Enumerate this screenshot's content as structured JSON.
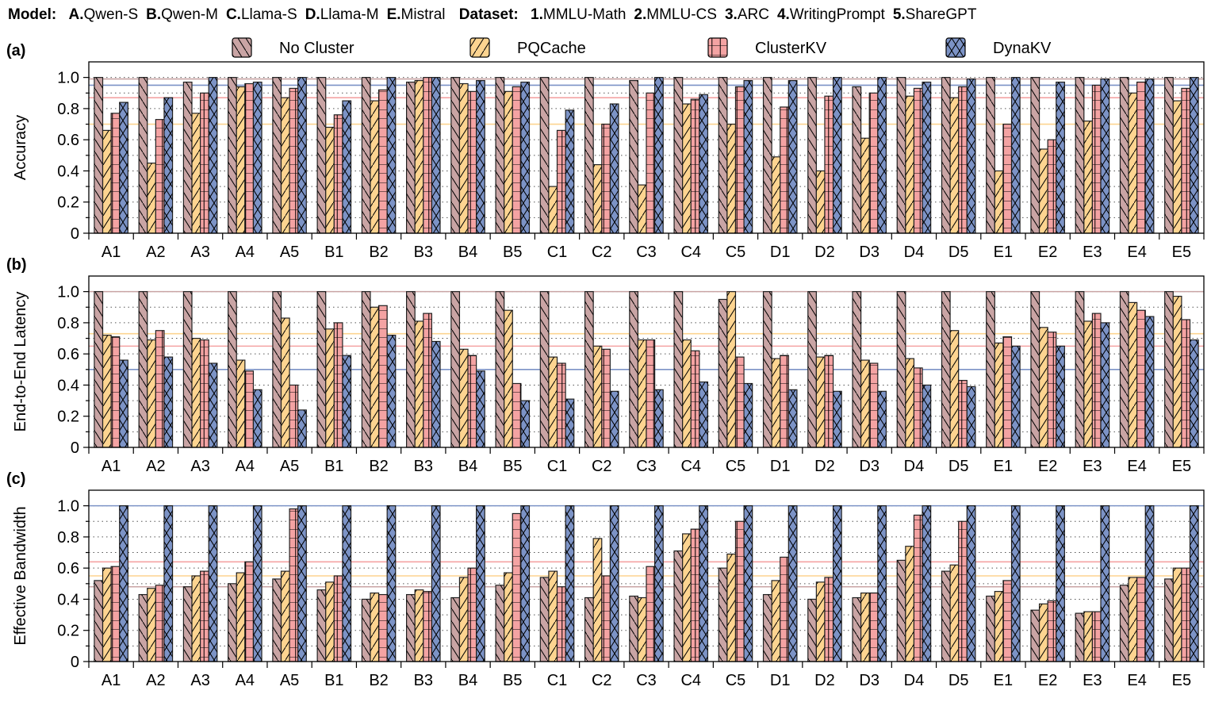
{
  "header": {
    "model_label": "Model:",
    "models": [
      {
        "key": "A.",
        "name": "Qwen-S"
      },
      {
        "key": "B.",
        "name": "Qwen-M"
      },
      {
        "key": "C.",
        "name": "Llama-S"
      },
      {
        "key": "D.",
        "name": "Llama-M"
      },
      {
        "key": "E.",
        "name": "Mistral"
      }
    ],
    "dataset_label": "Dataset:",
    "datasets": [
      {
        "key": "1.",
        "name": "MMLU-Math"
      },
      {
        "key": "2.",
        "name": "MMLU-CS"
      },
      {
        "key": "3.",
        "name": "ARC"
      },
      {
        "key": "4.",
        "name": "WritingPrompt"
      },
      {
        "key": "5.",
        "name": "ShareGPT"
      }
    ]
  },
  "legend": [
    {
      "name": "No Cluster",
      "color": "#c9a4a4",
      "hatch": "backslash"
    },
    {
      "name": "PQCache",
      "color": "#fdd490",
      "hatch": "slash"
    },
    {
      "name": "ClusterKV",
      "color": "#f4a3a3",
      "hatch": "brick"
    },
    {
      "name": "DynaKV",
      "color": "#7c93c6",
      "hatch": "cross"
    }
  ],
  "chart_data": [
    {
      "panel": "(a)",
      "type": "bar",
      "ylabel": "Accuracy",
      "ylim": [
        0,
        1.1
      ],
      "yticks": [
        "0",
        "0.2",
        "0.4",
        "0.6",
        "0.8",
        "1.0"
      ],
      "grid": "dotted-horizontal",
      "categories": [
        "A1",
        "A2",
        "A3",
        "A4",
        "A5",
        "B1",
        "B2",
        "B3",
        "B4",
        "B5",
        "C1",
        "C2",
        "C3",
        "C4",
        "C5",
        "D1",
        "D2",
        "D3",
        "D4",
        "D5",
        "E1",
        "E2",
        "E3",
        "E4",
        "E5"
      ],
      "series": [
        {
          "name": "No Cluster",
          "values": [
            1.0,
            1.0,
            0.97,
            1.0,
            1.0,
            1.0,
            1.0,
            0.97,
            1.0,
            1.0,
            1.0,
            1.0,
            0.98,
            1.0,
            1.0,
            1.0,
            1.0,
            0.94,
            1.0,
            1.0,
            1.0,
            1.0,
            1.0,
            1.0,
            1.0
          ]
        },
        {
          "name": "PQCache",
          "values": [
            0.66,
            0.45,
            0.77,
            0.94,
            0.87,
            0.68,
            0.85,
            0.98,
            0.96,
            0.91,
            0.3,
            0.44,
            0.31,
            0.83,
            0.7,
            0.49,
            0.4,
            0.61,
            0.88,
            0.87,
            0.4,
            0.54,
            0.72,
            0.9,
            0.85
          ]
        },
        {
          "name": "ClusterKV",
          "values": [
            0.77,
            0.73,
            0.9,
            0.96,
            0.93,
            0.76,
            0.92,
            1.0,
            0.91,
            0.94,
            0.66,
            0.7,
            0.9,
            0.86,
            0.94,
            0.81,
            0.88,
            0.9,
            0.93,
            0.94,
            0.7,
            0.6,
            0.95,
            0.97,
            0.93
          ]
        },
        {
          "name": "DynaKV",
          "values": [
            0.84,
            0.87,
            1.0,
            0.97,
            1.0,
            0.85,
            1.0,
            1.0,
            0.98,
            0.97,
            0.79,
            0.83,
            1.0,
            0.89,
            0.98,
            0.98,
            1.0,
            1.0,
            0.97,
            0.99,
            1.0,
            0.97,
            0.99,
            0.99,
            1.0
          ]
        }
      ],
      "reference_lines": [
        {
          "series": "No Cluster",
          "value": 0.99
        },
        {
          "series": "DynaKV",
          "value": 0.95
        },
        {
          "series": "ClusterKV",
          "value": 0.87
        },
        {
          "series": "PQCache",
          "value": 0.7
        }
      ]
    },
    {
      "panel": "(b)",
      "type": "bar",
      "ylabel": "End-to-End Latency",
      "ylim": [
        0,
        1.1
      ],
      "yticks": [
        "0",
        "0.2",
        "0.4",
        "0.6",
        "0.8",
        "1.0"
      ],
      "grid": "dotted-horizontal",
      "categories": [
        "A1",
        "A2",
        "A3",
        "A4",
        "A5",
        "B1",
        "B2",
        "B3",
        "B4",
        "B5",
        "C1",
        "C2",
        "C3",
        "C4",
        "C5",
        "D1",
        "D2",
        "D3",
        "D4",
        "D5",
        "E1",
        "E2",
        "E3",
        "E4",
        "E5"
      ],
      "series": [
        {
          "name": "No Cluster",
          "values": [
            1.0,
            1.0,
            1.0,
            1.0,
            1.0,
            1.0,
            1.0,
            1.0,
            1.0,
            1.0,
            1.0,
            1.0,
            1.0,
            1.0,
            0.95,
            1.0,
            1.0,
            1.0,
            1.0,
            1.0,
            1.0,
            1.0,
            1.0,
            1.0,
            1.0
          ]
        },
        {
          "name": "PQCache",
          "values": [
            0.72,
            0.69,
            0.7,
            0.56,
            0.83,
            0.76,
            0.9,
            0.81,
            0.63,
            0.88,
            0.58,
            0.65,
            0.69,
            0.69,
            1.0,
            0.57,
            0.58,
            0.56,
            0.57,
            0.75,
            0.67,
            0.77,
            0.81,
            0.93,
            0.97
          ]
        },
        {
          "name": "ClusterKV",
          "values": [
            0.71,
            0.75,
            0.69,
            0.49,
            0.4,
            0.8,
            0.91,
            0.86,
            0.59,
            0.41,
            0.54,
            0.63,
            0.69,
            0.62,
            0.58,
            0.59,
            0.59,
            0.54,
            0.51,
            0.43,
            0.71,
            0.74,
            0.86,
            0.88,
            0.82
          ]
        },
        {
          "name": "DynaKV",
          "values": [
            0.56,
            0.58,
            0.54,
            0.37,
            0.24,
            0.59,
            0.72,
            0.68,
            0.49,
            0.3,
            0.31,
            0.36,
            0.37,
            0.42,
            0.41,
            0.37,
            0.36,
            0.36,
            0.4,
            0.39,
            0.65,
            0.65,
            0.8,
            0.84,
            0.69
          ]
        }
      ],
      "reference_lines": [
        {
          "series": "No Cluster",
          "value": 1.0
        },
        {
          "series": "PQCache",
          "value": 0.73
        },
        {
          "series": "ClusterKV",
          "value": 0.65
        },
        {
          "series": "DynaKV",
          "value": 0.5
        }
      ]
    },
    {
      "panel": "(c)",
      "type": "bar",
      "ylabel": "Effective Bandwidth",
      "ylim": [
        0,
        1.1
      ],
      "yticks": [
        "0",
        "0.2",
        "0.4",
        "0.6",
        "0.8",
        "1.0"
      ],
      "grid": "dotted-horizontal",
      "categories": [
        "A1",
        "A2",
        "A3",
        "A4",
        "A5",
        "B1",
        "B2",
        "B3",
        "B4",
        "B5",
        "C1",
        "C2",
        "C3",
        "C4",
        "C5",
        "D1",
        "D2",
        "D3",
        "D4",
        "D5",
        "E1",
        "E2",
        "E3",
        "E4",
        "E5"
      ],
      "series": [
        {
          "name": "No Cluster",
          "values": [
            0.52,
            0.43,
            0.48,
            0.5,
            0.53,
            0.46,
            0.4,
            0.43,
            0.41,
            0.49,
            0.54,
            0.41,
            0.42,
            0.71,
            0.6,
            0.43,
            0.4,
            0.41,
            0.65,
            0.58,
            0.42,
            0.33,
            0.31,
            0.49,
            0.53
          ]
        },
        {
          "name": "PQCache",
          "values": [
            0.6,
            0.47,
            0.55,
            0.57,
            0.58,
            0.51,
            0.44,
            0.46,
            0.54,
            0.57,
            0.58,
            0.79,
            0.41,
            0.82,
            0.69,
            0.52,
            0.51,
            0.44,
            0.74,
            0.62,
            0.45,
            0.37,
            0.32,
            0.54,
            0.6
          ]
        },
        {
          "name": "ClusterKV",
          "values": [
            0.61,
            0.49,
            0.58,
            0.64,
            0.98,
            0.55,
            0.43,
            0.45,
            0.6,
            0.95,
            0.48,
            0.55,
            0.61,
            0.85,
            0.9,
            0.67,
            0.54,
            0.44,
            0.94,
            0.9,
            0.52,
            0.39,
            0.32,
            0.54,
            0.6
          ]
        },
        {
          "name": "DynaKV",
          "values": [
            1.0,
            1.0,
            1.0,
            1.0,
            1.0,
            1.0,
            1.0,
            1.0,
            1.0,
            1.0,
            1.0,
            1.0,
            1.0,
            1.0,
            1.0,
            1.0,
            1.0,
            1.0,
            1.0,
            1.0,
            1.0,
            1.0,
            1.0,
            1.0,
            1.0
          ]
        }
      ],
      "reference_lines": [
        {
          "series": "DynaKV",
          "value": 1.0
        },
        {
          "series": "ClusterKV",
          "value": 0.64
        },
        {
          "series": "PQCache",
          "value": 0.55
        },
        {
          "series": "No Cluster",
          "value": 0.48
        }
      ]
    }
  ]
}
